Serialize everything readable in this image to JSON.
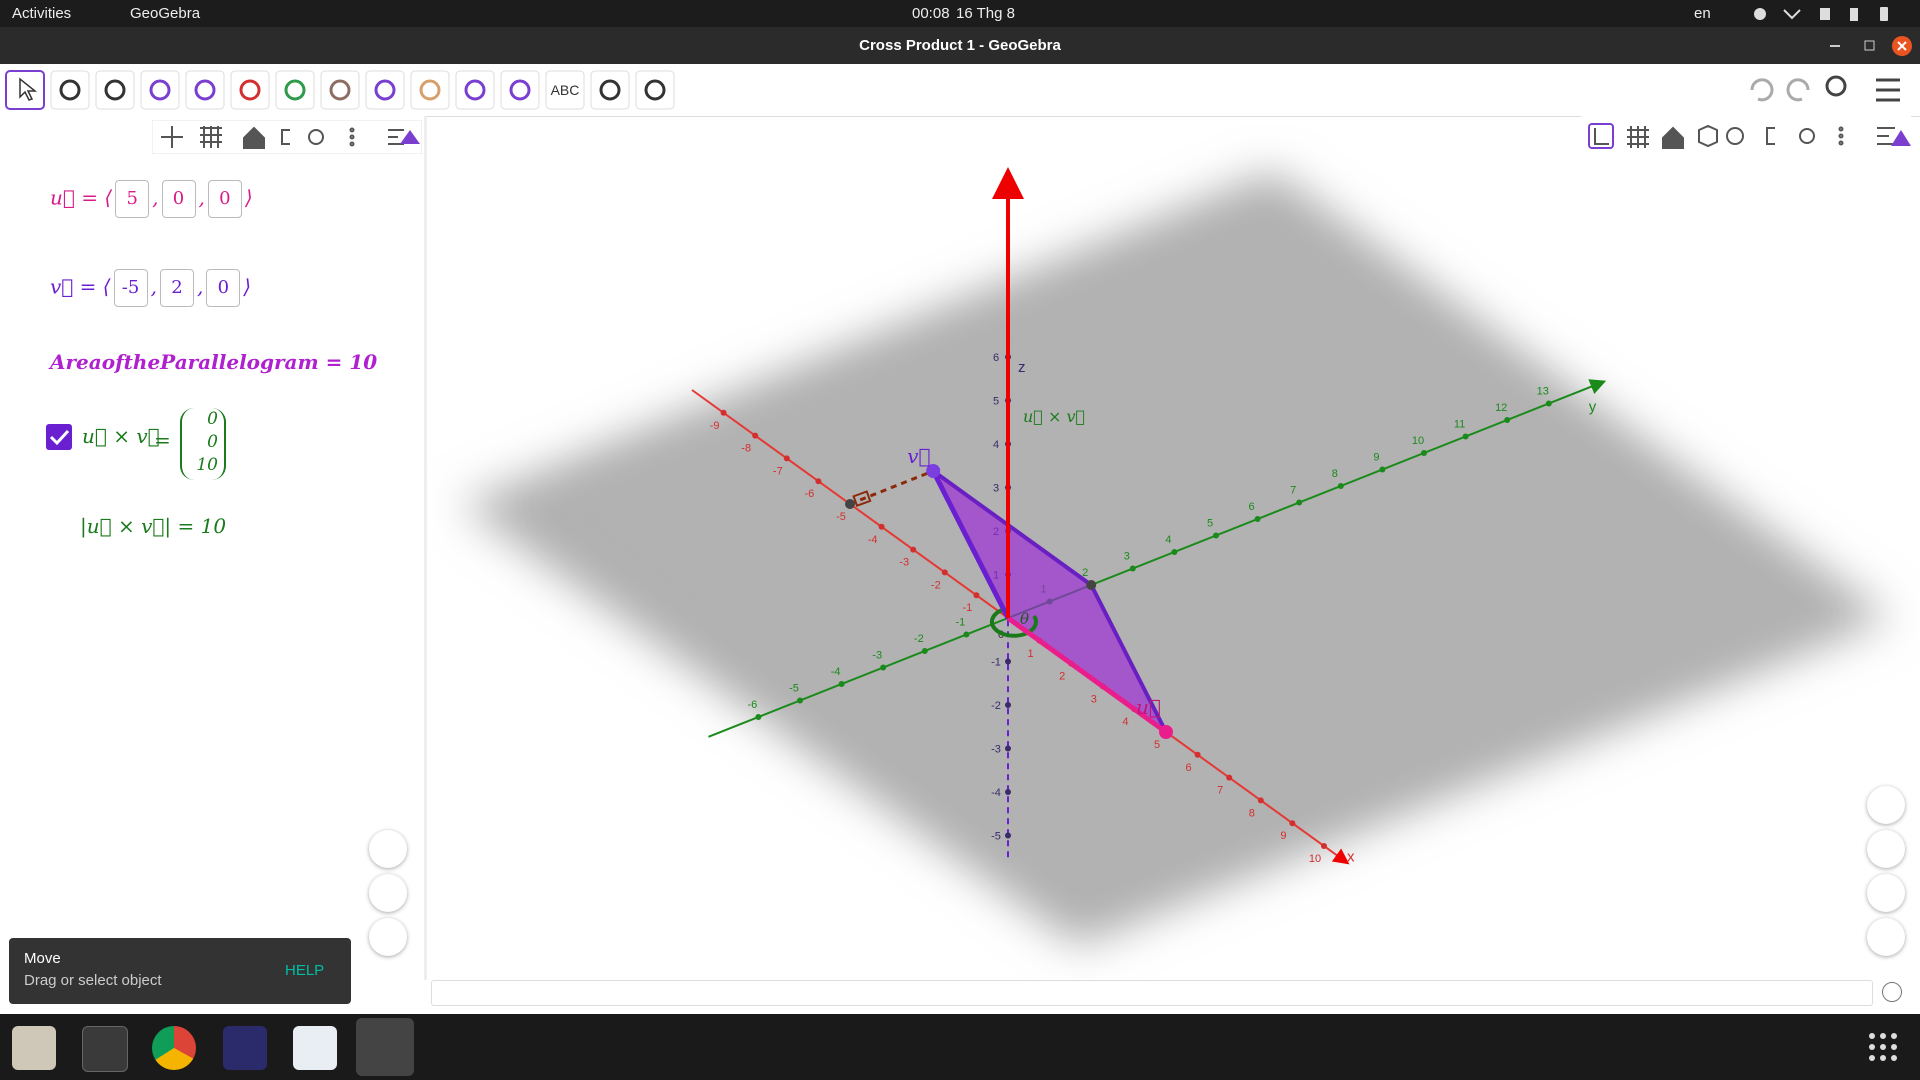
{
  "topbar": {
    "activities": "Activities",
    "app": "GeoGebra",
    "time": "00:08",
    "date": "16 Thg 8",
    "lang": "en"
  },
  "window": {
    "title": "Cross Product 1 - GeoGebra"
  },
  "toolbar": {
    "text_tool": "ABC"
  },
  "algebra": {
    "u": {
      "lhs": "u⃗ = ⟨",
      "components": [
        5,
        0,
        0
      ],
      "sep": ",",
      "close": "⟩"
    },
    "v": {
      "lhs": "v⃗ = ⟨",
      "components": [
        -5,
        2,
        0
      ],
      "sep": ",",
      "close": "⟩"
    },
    "area": "AreaoftheParallelogram = 10",
    "cross": {
      "lhs": "u⃗ × v⃗",
      "eq": "=",
      "components": [
        0,
        0,
        10
      ]
    },
    "magnitude": "|u⃗ × v⃗| = 10"
  },
  "graphics": {
    "axis_labels": {
      "x": "x",
      "y": "y",
      "z": "z"
    },
    "origin": "0",
    "x_ticks": [
      -9,
      -8,
      -7,
      -6,
      -5,
      -4,
      -3,
      -2,
      -1,
      1,
      2,
      3,
      4,
      5,
      6,
      7,
      8,
      9,
      10
    ],
    "y_ticks": [
      -6,
      -5,
      -4,
      -3,
      -2,
      -1,
      1,
      2,
      3,
      4,
      5,
      6,
      7,
      8,
      9,
      10,
      11,
      12,
      13
    ],
    "z_ticks": [
      -5,
      -4,
      -3,
      -2,
      -1,
      1,
      2,
      3,
      4,
      5,
      6
    ],
    "labels": {
      "cross": "u⃗ × v⃗",
      "theta": "θ",
      "u": "u⃗",
      "v": "v⃗"
    }
  },
  "tooltip": {
    "title": "Move",
    "text": "Drag or select object",
    "action": "HELP"
  }
}
